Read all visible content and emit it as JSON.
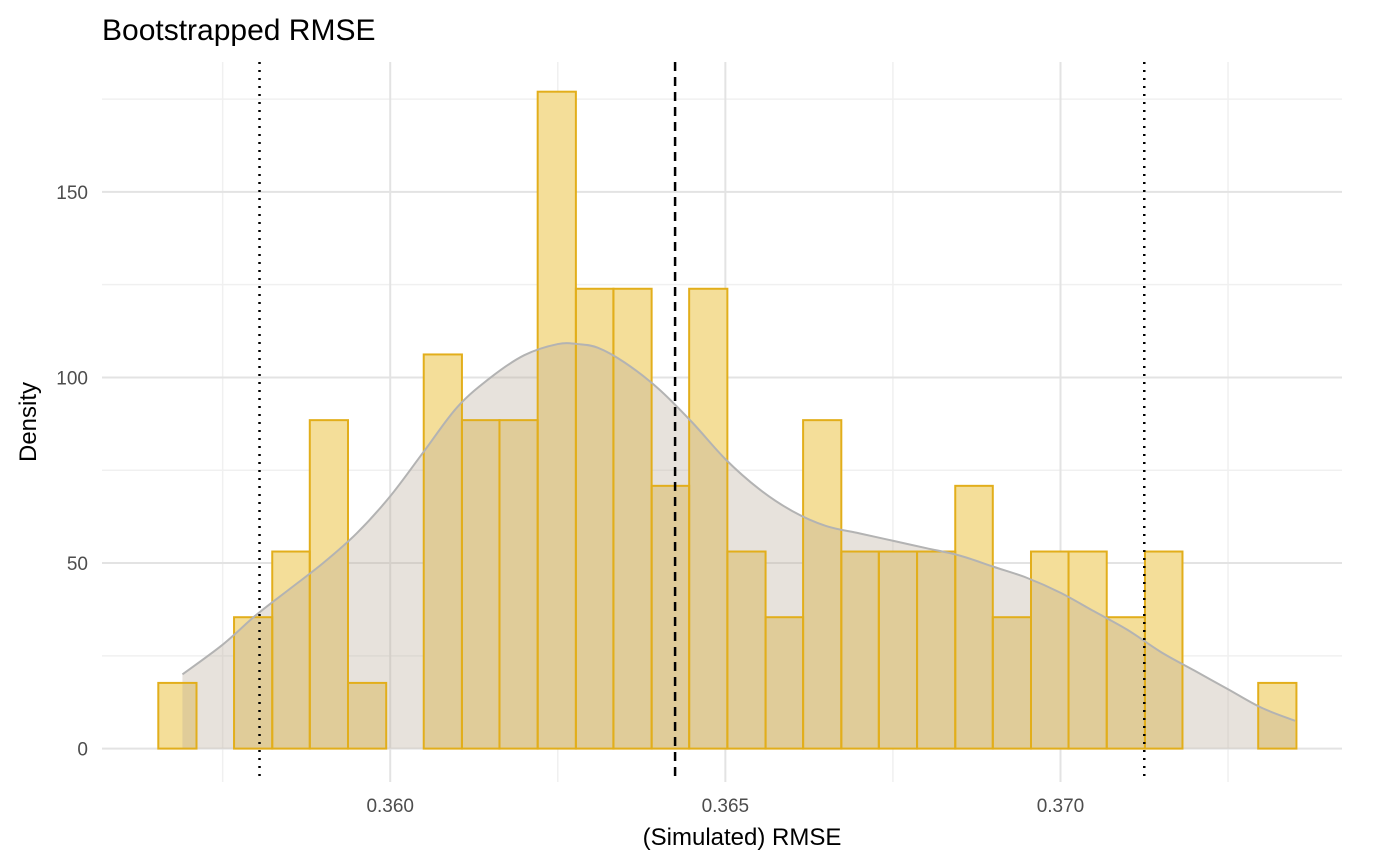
{
  "chart_data": {
    "type": "bar",
    "title": "Bootstrapped RMSE",
    "xlabel": "(Simulated) RMSE",
    "ylabel": "Density",
    "xlim": [
      0.3557,
      0.3742
    ],
    "ylim": [
      -9,
      185
    ],
    "x_ticks": [
      0.36,
      0.365,
      0.37
    ],
    "x_tick_labels": [
      "0.360",
      "0.365",
      "0.370"
    ],
    "y_ticks": [
      0,
      50,
      100,
      150
    ],
    "y_tick_labels": [
      "0",
      "50",
      "100",
      "150"
    ],
    "grid": true,
    "bin_width": 0.000566,
    "bins": [
      {
        "x0": 0.35654,
        "x1": 0.35711,
        "density": 17.7
      },
      {
        "x0": 0.35711,
        "x1": 0.35767,
        "density": 0
      },
      {
        "x0": 0.35767,
        "x1": 0.35824,
        "density": 35.4
      },
      {
        "x0": 0.35824,
        "x1": 0.3588,
        "density": 53.1
      },
      {
        "x0": 0.3588,
        "x1": 0.35937,
        "density": 88.5
      },
      {
        "x0": 0.35937,
        "x1": 0.35994,
        "density": 17.7
      },
      {
        "x0": 0.35994,
        "x1": 0.3605,
        "density": 0
      },
      {
        "x0": 0.3605,
        "x1": 0.36107,
        "density": 106.2
      },
      {
        "x0": 0.36107,
        "x1": 0.36163,
        "density": 88.5
      },
      {
        "x0": 0.36163,
        "x1": 0.3622,
        "density": 88.5
      },
      {
        "x0": 0.3622,
        "x1": 0.36277,
        "density": 177.0
      },
      {
        "x0": 0.36277,
        "x1": 0.36333,
        "density": 123.9
      },
      {
        "x0": 0.36333,
        "x1": 0.3639,
        "density": 123.9
      },
      {
        "x0": 0.3639,
        "x1": 0.36446,
        "density": 70.8
      },
      {
        "x0": 0.36446,
        "x1": 0.36503,
        "density": 123.9
      },
      {
        "x0": 0.36503,
        "x1": 0.3656,
        "density": 53.1
      },
      {
        "x0": 0.3656,
        "x1": 0.36616,
        "density": 35.4
      },
      {
        "x0": 0.36616,
        "x1": 0.36673,
        "density": 88.5
      },
      {
        "x0": 0.36673,
        "x1": 0.36729,
        "density": 53.1
      },
      {
        "x0": 0.36729,
        "x1": 0.36786,
        "density": 53.1
      },
      {
        "x0": 0.36786,
        "x1": 0.36843,
        "density": 53.1
      },
      {
        "x0": 0.36843,
        "x1": 0.36899,
        "density": 70.8
      },
      {
        "x0": 0.36899,
        "x1": 0.36956,
        "density": 35.4
      },
      {
        "x0": 0.36956,
        "x1": 0.37012,
        "density": 53.1
      },
      {
        "x0": 0.37012,
        "x1": 0.37069,
        "density": 53.1
      },
      {
        "x0": 0.37069,
        "x1": 0.37126,
        "density": 35.4
      },
      {
        "x0": 0.37126,
        "x1": 0.37182,
        "density": 53.1
      },
      {
        "x0": 0.37182,
        "x1": 0.37239,
        "density": 0
      },
      {
        "x0": 0.37239,
        "x1": 0.37295,
        "density": 0
      },
      {
        "x0": 0.37295,
        "x1": 0.37352,
        "density": 17.7
      }
    ],
    "density_curve": {
      "x": [
        0.3569,
        0.3575,
        0.358,
        0.3585,
        0.359,
        0.3595,
        0.36,
        0.3605,
        0.361,
        0.3615,
        0.362,
        0.3625,
        0.3628,
        0.3631,
        0.3635,
        0.364,
        0.3645,
        0.365,
        0.3655,
        0.366,
        0.3665,
        0.367,
        0.3675,
        0.368,
        0.3685,
        0.369,
        0.3695,
        0.37,
        0.3705,
        0.371,
        0.3715,
        0.372,
        0.3725,
        0.373,
        0.3735
      ],
      "y": [
        20,
        28,
        36,
        43,
        50,
        58,
        68,
        80,
        92,
        100,
        106,
        109,
        109,
        108,
        104,
        97,
        88,
        78,
        70,
        64,
        60,
        58,
        56,
        54,
        52,
        49,
        46,
        42,
        37,
        32,
        26,
        21,
        16,
        11,
        7.5
      ]
    },
    "vlines": [
      {
        "x": 0.36425,
        "style": "dashed"
      },
      {
        "x": 0.35805,
        "style": "dotted"
      },
      {
        "x": 0.37125,
        "style": "dotted"
      }
    ],
    "colors": {
      "bar_fill": "#f4de99",
      "bar_stroke": "#e2ae1b",
      "density_fill": "#b9ad9b",
      "density_line": "#b3b3b3",
      "grid_major": "#e3e3e3",
      "grid_minor": "#f0f0f0",
      "vline": "#000000"
    }
  }
}
